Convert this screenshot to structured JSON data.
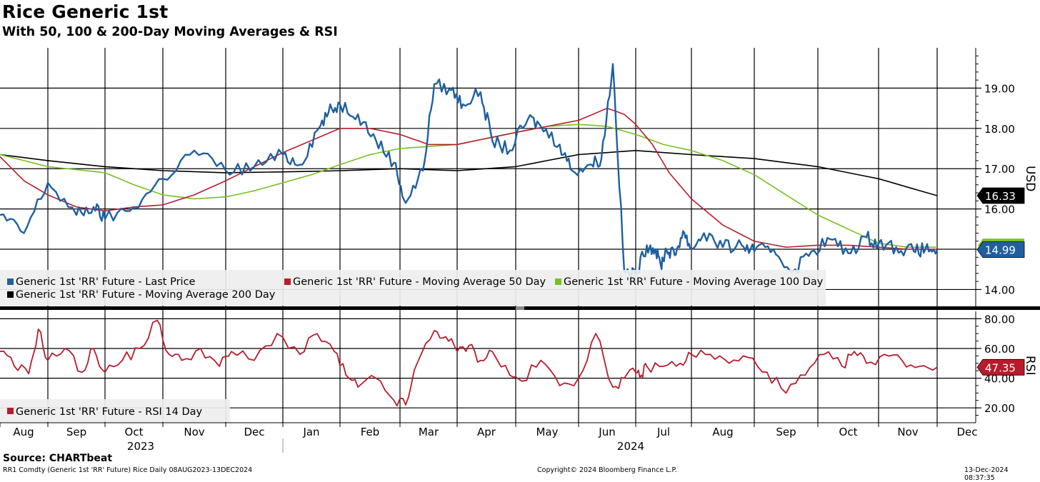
{
  "header": {
    "title": "Rice Generic 1st",
    "subtitle": "With 50, 100 & 200-Day Moving Averages & RSI"
  },
  "footer": {
    "source": "Source: CHARTbeat",
    "ticker": "RR1 Comdty (Generic 1st 'RR' Future) Rice  Daily 08AUG2023-13DEC2024",
    "copyright": "Copyright© 2024 Bloomberg Finance L.P.",
    "timestamp": "13-Dec-2024 08:37:35"
  },
  "colors": {
    "price": "#1f5fa0",
    "ma50": "#b81c2c",
    "ma100": "#77c020",
    "ma200": "#000000",
    "rsi": "#b81c2c",
    "grid": "#000000"
  },
  "chart_data": [
    {
      "type": "line",
      "title": "Rice Generic 1st",
      "ylabel": "USD",
      "ylim": [
        13.6,
        20.0
      ],
      "yticks": [
        "14.00",
        "16.00",
        "17.00",
        "18.00",
        "19.00"
      ],
      "x_months": [
        "Aug",
        "Sep",
        "Oct",
        "Nov",
        "Dec",
        "Jan",
        "Feb",
        "Mar",
        "Apr",
        "May",
        "Jun",
        "Jul",
        "Aug",
        "Sep",
        "Oct",
        "Nov",
        "Dec"
      ],
      "x_years": [
        "2023",
        "2024"
      ],
      "x_range": [
        "2023-08-08",
        "2024-12-13"
      ],
      "legend": [
        "Generic 1st 'RR' Future - Last Price",
        "Generic 1st 'RR' Future - Moving Average 50 Day",
        "Generic 1st 'RR' Future - Moving Average 100 Day",
        "Generic 1st 'RR' Future - Moving Average 200 Day"
      ],
      "last_value_labels": [
        "16.33",
        "14.99"
      ],
      "series": [
        {
          "name": "Last Price",
          "key": "price",
          "x": [
            0,
            0.5,
            1,
            1.5,
            1.8,
            2,
            2.5,
            3,
            3.5,
            4,
            4.5,
            5,
            5.3,
            5.6,
            5.8,
            6,
            6.3,
            6.6,
            6.9,
            7.1,
            7.4,
            7.6,
            7.9,
            8.1,
            8.4,
            8.6,
            8.9,
            9.2,
            9.4,
            9.7,
            9.9,
            10.2,
            10.4,
            10.6,
            10.8,
            11,
            11.2,
            11.35,
            11.45,
            11.55,
            11.7,
            11.85,
            12,
            12.2,
            12.5,
            12.8,
            13,
            13.3,
            13.6,
            13.9,
            14.2,
            14.5,
            14.8,
            15,
            15.3,
            15.6,
            15.8,
            16
          ],
          "y": [
            15.85,
            15.4,
            16.65,
            15.85,
            16.05,
            15.75,
            16.05,
            16.75,
            17.45,
            16.95,
            17.05,
            17.35,
            17.1,
            17.95,
            18.4,
            18.6,
            18.35,
            17.7,
            17.15,
            16.15,
            16.95,
            19.1,
            18.95,
            18.6,
            18.9,
            17.7,
            17.45,
            18.25,
            18.05,
            17.6,
            16.95,
            17.1,
            17.25,
            19.6,
            14.45,
            14.35,
            15.1,
            15.0,
            14.6,
            15.0,
            14.85,
            15.45,
            15.0,
            15.4,
            15.05,
            15.1,
            14.95,
            15.0,
            14.45,
            14.95,
            15.25,
            14.9,
            15.3,
            15.15,
            15.05,
            14.95,
            15.0,
            14.99
          ]
        },
        {
          "name": "Moving Average 50 Day",
          "key": "ma50",
          "x": [
            0,
            0.5,
            1,
            1.5,
            2,
            2.5,
            3,
            3.5,
            4,
            4.5,
            5,
            5.5,
            6,
            6.5,
            7,
            7.5,
            8,
            8.5,
            9,
            9.5,
            10,
            10.5,
            10.8,
            11,
            11.3,
            11.6,
            12,
            12.5,
            13,
            13.5,
            14,
            14.5,
            15,
            15.5,
            16
          ],
          "y": [
            17.3,
            16.7,
            16.35,
            16.05,
            15.95,
            16.05,
            16.1,
            16.35,
            16.7,
            17.05,
            17.4,
            17.7,
            18.0,
            18.0,
            17.85,
            17.6,
            17.6,
            17.75,
            17.9,
            18.05,
            18.2,
            18.5,
            18.35,
            18.1,
            17.6,
            16.9,
            16.25,
            15.6,
            15.2,
            15.05,
            15.1,
            15.1,
            15.05,
            15.0,
            15.0
          ]
        },
        {
          "name": "Moving Average 100 Day",
          "key": "ma100",
          "x": [
            0,
            1,
            2,
            2.5,
            3,
            3.5,
            4,
            4.5,
            5,
            5.5,
            6,
            6.5,
            7,
            7.5,
            8,
            8.5,
            9,
            9.5,
            10,
            10.5,
            11,
            11.5,
            12,
            12.5,
            13,
            13.5,
            14,
            14.5,
            15,
            15.5,
            16
          ],
          "y": [
            17.35,
            17.05,
            16.9,
            16.6,
            16.35,
            16.25,
            16.3,
            16.45,
            16.65,
            16.85,
            17.1,
            17.35,
            17.5,
            17.55,
            17.6,
            17.75,
            17.9,
            18.05,
            18.1,
            18.05,
            17.85,
            17.6,
            17.45,
            17.2,
            16.85,
            16.35,
            15.85,
            15.5,
            15.15,
            15.05,
            15.05
          ]
        },
        {
          "name": "Moving Average 200 Day",
          "key": "ma200",
          "x": [
            0,
            1,
            2,
            3,
            4,
            5,
            6,
            7,
            8,
            9,
            10,
            11,
            12,
            13,
            14,
            15,
            16
          ],
          "y": [
            17.35,
            17.2,
            17.05,
            16.95,
            16.9,
            16.92,
            16.95,
            17.0,
            16.95,
            17.05,
            17.35,
            17.45,
            17.35,
            17.25,
            17.05,
            16.75,
            16.33
          ]
        }
      ]
    },
    {
      "type": "line",
      "title": "RSI",
      "ylabel": "RSI",
      "ylim": [
        10,
        85
      ],
      "yticks": [
        "20.00",
        "40.00",
        "60.00",
        "80.00"
      ],
      "legend": [
        "Generic 1st 'RR' Future - RSI 14 Day"
      ],
      "last_value_labels": [
        "47.35"
      ],
      "series": [
        {
          "name": "RSI 14 Day",
          "key": "rsi",
          "x": [
            0,
            0.3,
            0.6,
            0.8,
            1,
            1.3,
            1.6,
            1.8,
            2,
            2.3,
            2.6,
            2.9,
            3.1,
            3.3,
            3.6,
            3.9,
            4.1,
            4.5,
            4.9,
            5.3,
            5.6,
            5.9,
            6.1,
            6.3,
            6.6,
            6.9,
            7.1,
            7.3,
            7.6,
            7.8,
            8,
            8.2,
            8.4,
            8.6,
            8.9,
            9.1,
            9.4,
            9.7,
            10,
            10.3,
            10.6,
            10.8,
            11,
            11.1,
            11.2,
            11.5,
            11.8,
            12,
            12.3,
            12.6,
            12.9,
            13.2,
            13.5,
            13.8,
            14.1,
            14.4,
            14.6,
            14.8,
            15.1,
            15.4,
            15.7,
            16
          ],
          "y": [
            58,
            48,
            43,
            73,
            52,
            60,
            44,
            60,
            44,
            52,
            60,
            79,
            56,
            52,
            60,
            48,
            58,
            52,
            70,
            56,
            70,
            58,
            42,
            34,
            40,
            25,
            22,
            50,
            72,
            68,
            58,
            62,
            52,
            58,
            42,
            38,
            52,
            35,
            40,
            70,
            34,
            40,
            44,
            42,
            48,
            48,
            50,
            56,
            56,
            50,
            54,
            44,
            30,
            42,
            56,
            48,
            58,
            50,
            56,
            52,
            48,
            47.35
          ]
        }
      ]
    }
  ]
}
